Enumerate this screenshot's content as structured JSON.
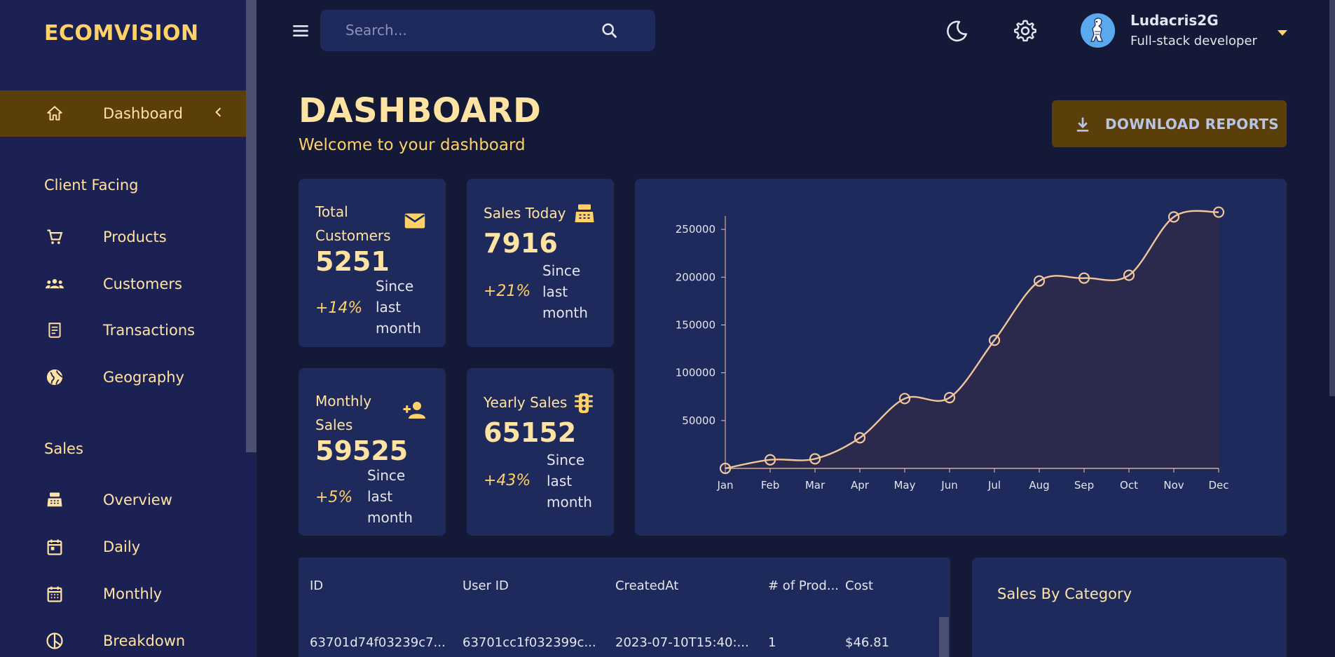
{
  "brand": "ECOMVISION",
  "sidebar": {
    "active": {
      "label": "Dashboard",
      "icon": "home-icon"
    },
    "sections": [
      {
        "title": "Client Facing",
        "items": [
          {
            "label": "Products",
            "icon": "cart-icon"
          },
          {
            "label": "Customers",
            "icon": "people-icon"
          },
          {
            "label": "Transactions",
            "icon": "receipt-icon"
          },
          {
            "label": "Geography",
            "icon": "globe-icon"
          }
        ]
      },
      {
        "title": "Sales",
        "items": [
          {
            "label": "Overview",
            "icon": "register-icon"
          },
          {
            "label": "Daily",
            "icon": "calendar-day-icon"
          },
          {
            "label": "Monthly",
            "icon": "calendar-month-icon"
          },
          {
            "label": "Breakdown",
            "icon": "pie-icon"
          }
        ]
      }
    ]
  },
  "topbar": {
    "search_placeholder": "Search...",
    "user": {
      "name": "Ludacris2G",
      "role": "Full-stack developer"
    }
  },
  "header": {
    "title": "DASHBOARD",
    "subtitle": "Welcome to your dashboard",
    "download_label": "DOWNLOAD REPORTS"
  },
  "stats": [
    {
      "title_line1": "Total",
      "title_line2": "Customers",
      "value": "5251",
      "increase": "+14%",
      "since1": "Since",
      "since2": "last",
      "since3": "month",
      "icon": "email-icon"
    },
    {
      "title_line1": "Sales Today",
      "value": "7916",
      "increase": "+21%",
      "since1": "Since",
      "since2": "last",
      "since3": "month",
      "icon": "register-icon"
    },
    {
      "title_line1": "Monthly",
      "title_line2": "Sales",
      "value": "59525",
      "increase": "+5%",
      "since1": "Since",
      "since2": "last",
      "since3": "month",
      "icon": "person-add-icon"
    },
    {
      "title_line1": "Yearly Sales",
      "value": "65152",
      "increase": "+43%",
      "since1": "Since",
      "since2": "last",
      "since3": "month",
      "icon": "traffic-icon"
    }
  ],
  "colors": {
    "accent": "#ffd166",
    "line": "#f2c69a",
    "area": "#2b2a4d",
    "bg": "#141937",
    "panel": "#1e2a5c",
    "sidebar": "#1b2153",
    "active": "#5a3f0a"
  },
  "chart_data": {
    "type": "area",
    "categories": [
      "Jan",
      "Feb",
      "Mar",
      "Apr",
      "May",
      "Jun",
      "Jul",
      "Aug",
      "Sep",
      "Oct",
      "Nov",
      "Dec"
    ],
    "values": [
      0,
      9000,
      10000,
      32000,
      73000,
      74000,
      134000,
      196000,
      199000,
      202000,
      263000,
      268000
    ],
    "yticks": [
      50000,
      100000,
      150000,
      200000,
      250000
    ],
    "ylim": [
      0,
      270000
    ]
  },
  "table": {
    "columns": [
      "ID",
      "User ID",
      "CreatedAt",
      "# of Prod...",
      "Cost"
    ],
    "rows": [
      [
        "63701d74f03239c7...",
        "63701cc1f032399c...",
        "2023-07-10T15:40:...",
        "1",
        "$46.81"
      ]
    ]
  },
  "category_title": "Sales By Category"
}
